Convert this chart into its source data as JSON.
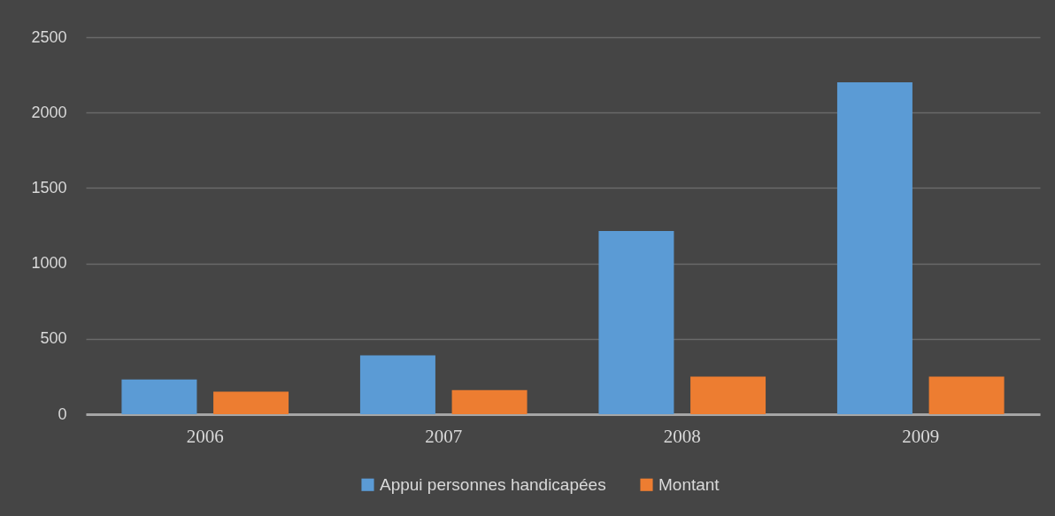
{
  "chart_data": {
    "type": "bar",
    "categories": [
      "2006",
      "2007",
      "2008",
      "2009"
    ],
    "series": [
      {
        "name": "Appui personnes handicapées",
        "color": "#5b9bd5",
        "values": [
          230,
          390,
          1215,
          2200
        ]
      },
      {
        "name": "Montant",
        "color": "#ed7d31",
        "values": [
          150,
          160,
          250,
          250
        ]
      }
    ],
    "ylim": [
      0,
      2500
    ],
    "yticks": [
      0,
      500,
      1000,
      1500,
      2000,
      2500
    ],
    "grid": "y",
    "legend": "bottom"
  }
}
